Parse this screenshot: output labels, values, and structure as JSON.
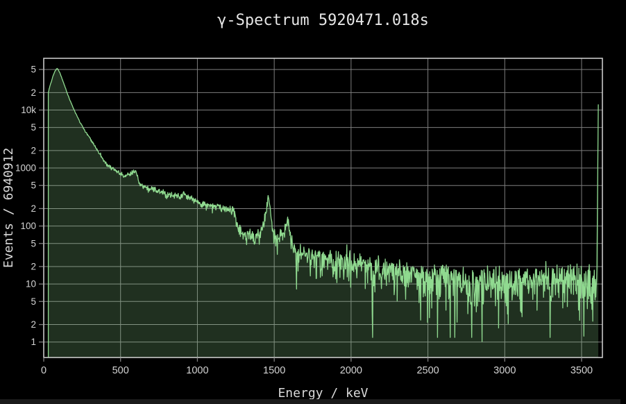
{
  "chart": {
    "title": "γ-Spectrum 5920471.018s",
    "xlabel": "Energy / keV",
    "ylabel": "Events / 6940912"
  },
  "colors": {
    "background": "#000000",
    "line": "#90da90",
    "fill": "rgba(146,220,146,0.22)",
    "grid": "#7e7e7e",
    "plot_border": "#d6d6d6",
    "title_text": "#e6e6e6",
    "tick_text": "#d4d4d4",
    "bottom_bar": "#1a1a1a"
  },
  "chart_data": {
    "type": "area",
    "y_scale": "log",
    "title": "γ-Spectrum 5920471.018s",
    "xlabel": "Energy / keV",
    "ylabel": "Events / 6940912",
    "xlim": [
      0,
      3634
    ],
    "ylim": [
      0.54,
      78000
    ],
    "grid": true,
    "legend": "none",
    "x_ticks": [
      0,
      500,
      1000,
      1500,
      2000,
      2500,
      3000,
      3500
    ],
    "y_ticks": [
      {
        "v": 1,
        "l": "1"
      },
      {
        "v": 2,
        "l": "2"
      },
      {
        "v": 5,
        "l": "5"
      },
      {
        "v": 10,
        "l": "10"
      },
      {
        "v": 20,
        "l": "2"
      },
      {
        "v": 50,
        "l": "5"
      },
      {
        "v": 100,
        "l": "100"
      },
      {
        "v": 200,
        "l": "2"
      },
      {
        "v": 500,
        "l": "5"
      },
      {
        "v": 1000,
        "l": "1000"
      },
      {
        "v": 2000,
        "l": "2"
      },
      {
        "v": 5000,
        "l": "5"
      },
      {
        "v": 10000,
        "l": "10k"
      },
      {
        "v": 20000,
        "l": "2"
      },
      {
        "v": 50000,
        "l": "5"
      }
    ],
    "start_kev": 30,
    "sample_step_kev": 2.5,
    "envelope_points": [
      [
        30,
        20000
      ],
      [
        34,
        22500
      ],
      [
        40,
        26000
      ],
      [
        48,
        30000
      ],
      [
        58,
        37000
      ],
      [
        70,
        45000
      ],
      [
        82,
        51000
      ],
      [
        88,
        52000
      ],
      [
        95,
        49500
      ],
      [
        103,
        45000
      ],
      [
        112,
        39000
      ],
      [
        122,
        33000
      ],
      [
        133,
        27500
      ],
      [
        145,
        22500
      ],
      [
        158,
        18000
      ],
      [
        172,
        14500
      ],
      [
        188,
        11500
      ],
      [
        205,
        9200
      ],
      [
        225,
        7100
      ],
      [
        248,
        5400
      ],
      [
        270,
        4300
      ],
      [
        295,
        3400
      ],
      [
        320,
        2700
      ],
      [
        345,
        2100
      ],
      [
        370,
        1650
      ],
      [
        395,
        1300
      ],
      [
        420,
        1130
      ],
      [
        450,
        960
      ],
      [
        480,
        840
      ],
      [
        510,
        770
      ],
      [
        540,
        760
      ],
      [
        562,
        790
      ],
      [
        578,
        840
      ],
      [
        590,
        870
      ],
      [
        600,
        880
      ],
      [
        612,
        700
      ],
      [
        622,
        530
      ],
      [
        640,
        490
      ],
      [
        670,
        460
      ],
      [
        700,
        440
      ],
      [
        730,
        410
      ],
      [
        760,
        390
      ],
      [
        790,
        360
      ],
      [
        820,
        345
      ],
      [
        850,
        335
      ],
      [
        880,
        330
      ],
      [
        900,
        345
      ],
      [
        911,
        365
      ],
      [
        922,
        345
      ],
      [
        940,
        315
      ],
      [
        965,
        285
      ],
      [
        1000,
        258
      ],
      [
        1040,
        232
      ],
      [
        1075,
        215
      ],
      [
        1105,
        212
      ],
      [
        1125,
        220
      ],
      [
        1150,
        207
      ],
      [
        1180,
        198
      ],
      [
        1210,
        192
      ],
      [
        1238,
        186
      ],
      [
        1250,
        130
      ],
      [
        1262,
        92
      ],
      [
        1285,
        76
      ],
      [
        1315,
        69
      ],
      [
        1345,
        66
      ],
      [
        1375,
        65
      ],
      [
        1400,
        70
      ],
      [
        1418,
        82
      ],
      [
        1432,
        105
      ],
      [
        1445,
        175
      ],
      [
        1461,
        330
      ],
      [
        1472,
        230
      ],
      [
        1484,
        105
      ],
      [
        1497,
        68
      ],
      [
        1515,
        57
      ],
      [
        1535,
        62
      ],
      [
        1555,
        75
      ],
      [
        1572,
        98
      ],
      [
        1588,
        122
      ],
      [
        1600,
        92
      ],
      [
        1612,
        50
      ],
      [
        1625,
        38
      ],
      [
        1650,
        34
      ],
      [
        1700,
        31
      ],
      [
        1750,
        28.5
      ],
      [
        1800,
        26.5
      ],
      [
        1850,
        25
      ],
      [
        1900,
        24
      ],
      [
        1950,
        23
      ],
      [
        2000,
        22
      ],
      [
        2060,
        20.5
      ],
      [
        2120,
        19.3
      ],
      [
        2180,
        18.4
      ],
      [
        2240,
        17.5
      ],
      [
        2300,
        16.2
      ],
      [
        2350,
        15
      ],
      [
        2400,
        13.6
      ],
      [
        2450,
        12.6
      ],
      [
        2500,
        12
      ],
      [
        2550,
        12.2
      ],
      [
        2585,
        14.5
      ],
      [
        2614,
        17
      ],
      [
        2640,
        14
      ],
      [
        2680,
        12
      ],
      [
        2740,
        11
      ],
      [
        2820,
        10.4
      ],
      [
        2900,
        10.3
      ],
      [
        3000,
        10.5
      ],
      [
        3100,
        10.6
      ],
      [
        3200,
        10.8
      ],
      [
        3300,
        11
      ],
      [
        3400,
        11.3
      ],
      [
        3500,
        11.6
      ],
      [
        3602,
        12
      ]
    ],
    "peaks_kev": [
      88,
      583,
      911,
      1461,
      1588,
      2614
    ],
    "overflow_bin": [
      3609,
      12500
    ],
    "forced_dips": [
      [
        2853,
        1.02
      ],
      [
        2690,
        2.2
      ]
    ],
    "noise": {
      "model": "poisson-like",
      "sigma_scale": 1.35,
      "seed": 9
    }
  }
}
